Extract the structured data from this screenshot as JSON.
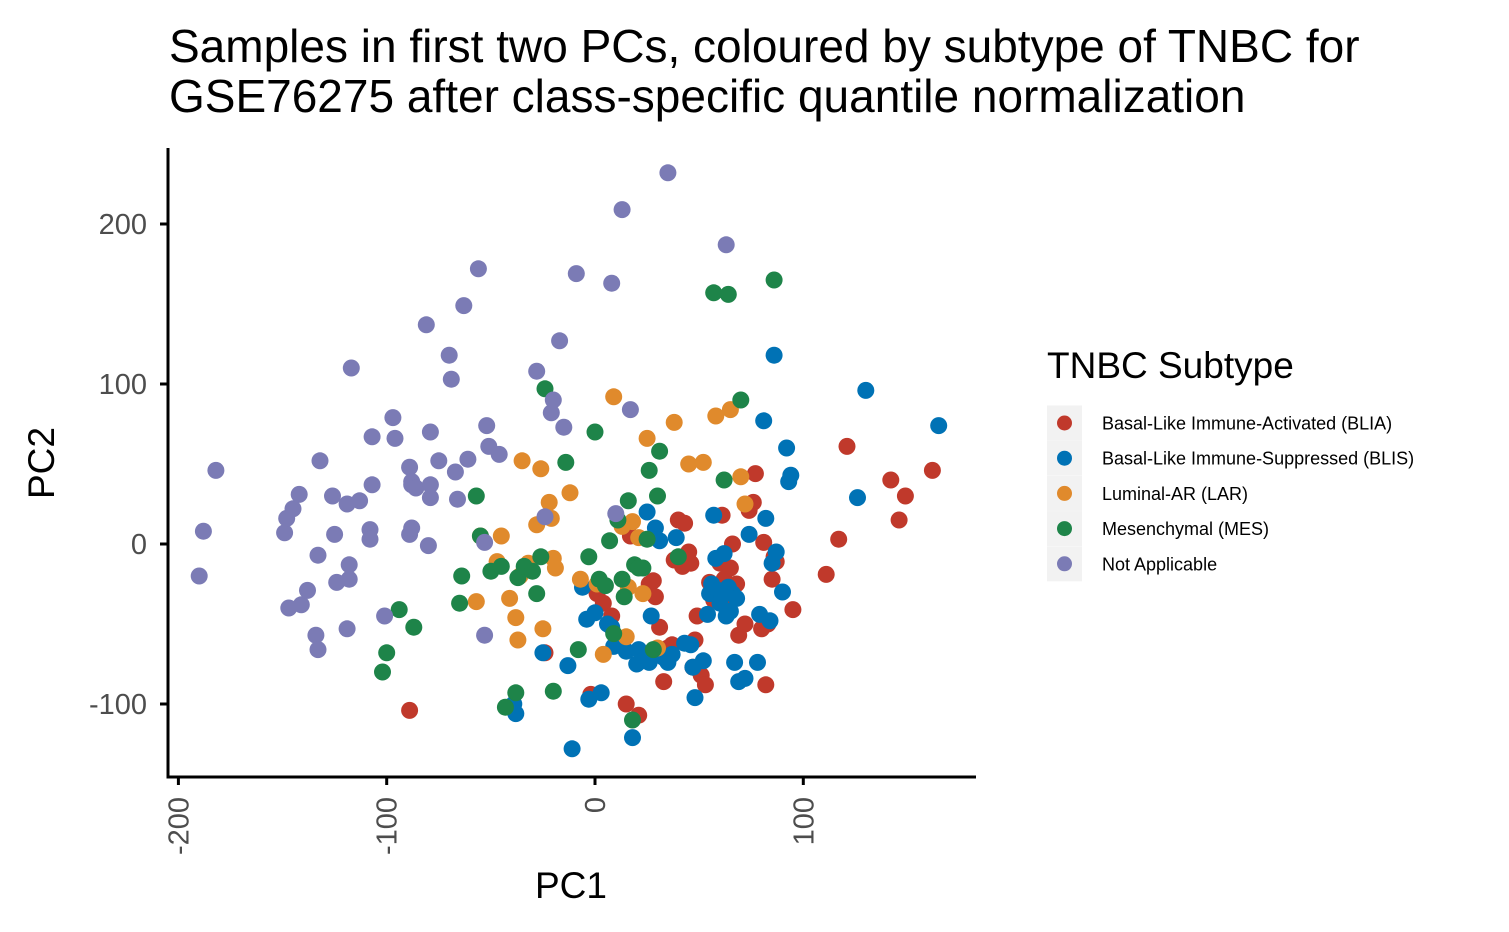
{
  "chart_data": {
    "type": "scatter",
    "title_lines": [
      "Samples in first two PCs, coloured by subtype of TNBC for",
      "GSE76275 after class-specific quantile normalization"
    ],
    "xlabel": "PC1",
    "ylabel": "PC2",
    "xlim": [
      -205,
      175
    ],
    "ylim": [
      -145,
      248
    ],
    "x_ticks": [
      -200,
      -100,
      0,
      100
    ],
    "x_tick_labels": [
      "-200",
      "-100",
      "0",
      "100"
    ],
    "y_ticks": [
      -100,
      0,
      100,
      200
    ],
    "y_tick_labels": [
      "-100",
      "0",
      "100",
      "200"
    ],
    "grid": false,
    "legend": {
      "title": "TNBC Subtype",
      "position": "right"
    },
    "series": [
      {
        "name": "Basal-Like Immune-Activated (BLIA)",
        "color": "#C0392B",
        "points": [
          [
            -89,
            -104
          ],
          [
            -24,
            -68
          ],
          [
            -2,
            -94
          ],
          [
            1,
            -31
          ],
          [
            4,
            -37
          ],
          [
            8,
            -45
          ],
          [
            15,
            -100
          ],
          [
            17,
            5
          ],
          [
            21,
            -107
          ],
          [
            26,
            -25
          ],
          [
            28,
            -23
          ],
          [
            29,
            -33
          ],
          [
            31,
            -52
          ],
          [
            33,
            -86
          ],
          [
            35,
            -65
          ],
          [
            37,
            -63
          ],
          [
            38,
            -10
          ],
          [
            40,
            15
          ],
          [
            42,
            -14
          ],
          [
            43,
            13
          ],
          [
            45,
            -5
          ],
          [
            46,
            -12
          ],
          [
            47,
            -77
          ],
          [
            48,
            -60
          ],
          [
            49,
            -45
          ],
          [
            51,
            -82
          ],
          [
            53,
            -88
          ],
          [
            55,
            -24
          ],
          [
            57,
            -35
          ],
          [
            60,
            -12
          ],
          [
            61,
            18
          ],
          [
            62,
            -22
          ],
          [
            63,
            -37
          ],
          [
            65,
            -15
          ],
          [
            66,
            0
          ],
          [
            68,
            -25
          ],
          [
            69,
            -57
          ],
          [
            72,
            -50
          ],
          [
            74,
            21
          ],
          [
            76,
            26
          ],
          [
            77,
            44
          ],
          [
            80,
            -53
          ],
          [
            81,
            1
          ],
          [
            82,
            -88
          ],
          [
            83,
            -50
          ],
          [
            85,
            -22
          ],
          [
            86,
            -8
          ],
          [
            87,
            -11
          ],
          [
            95,
            -41
          ],
          [
            111,
            -19
          ],
          [
            117,
            3
          ],
          [
            121,
            61
          ],
          [
            142,
            40
          ],
          [
            146,
            15
          ],
          [
            149,
            30
          ],
          [
            162,
            46
          ]
        ]
      },
      {
        "name": "Basal-Like Immune-Suppressed (BLIS)",
        "color": "#0072B5",
        "points": [
          [
            -39,
            -100
          ],
          [
            -38,
            -106
          ],
          [
            -25,
            -68
          ],
          [
            -13,
            -76
          ],
          [
            -11,
            -128
          ],
          [
            -6,
            -27
          ],
          [
            -4,
            -47
          ],
          [
            -3,
            -97
          ],
          [
            0,
            -43
          ],
          [
            3,
            -93
          ],
          [
            6,
            -50
          ],
          [
            8,
            -52
          ],
          [
            9,
            -64
          ],
          [
            13,
            -63
          ],
          [
            15,
            -67
          ],
          [
            18,
            -121
          ],
          [
            20,
            -75
          ],
          [
            21,
            -66
          ],
          [
            23,
            -73
          ],
          [
            25,
            20
          ],
          [
            26,
            -74
          ],
          [
            27,
            -45
          ],
          [
            29,
            10
          ],
          [
            31,
            2
          ],
          [
            33,
            -71
          ],
          [
            35,
            -74
          ],
          [
            37,
            -69
          ],
          [
            39,
            4
          ],
          [
            43,
            -62
          ],
          [
            46,
            -63
          ],
          [
            47,
            -77
          ],
          [
            48,
            -96
          ],
          [
            52,
            -73
          ],
          [
            54,
            -44
          ],
          [
            55,
            -31
          ],
          [
            56,
            -25
          ],
          [
            57,
            18
          ],
          [
            58,
            -9
          ],
          [
            59,
            -29
          ],
          [
            60,
            -37
          ],
          [
            61,
            -32
          ],
          [
            62,
            -6
          ],
          [
            63,
            -45
          ],
          [
            64,
            -27
          ],
          [
            65,
            -42
          ],
          [
            66,
            -31
          ],
          [
            67,
            -74
          ],
          [
            68,
            -34
          ],
          [
            69,
            -86
          ],
          [
            72,
            -84
          ],
          [
            74,
            6
          ],
          [
            78,
            -74
          ],
          [
            79,
            -44
          ],
          [
            81,
            77
          ],
          [
            82,
            16
          ],
          [
            84,
            -48
          ],
          [
            85,
            -12
          ],
          [
            86,
            118
          ],
          [
            87,
            -5
          ],
          [
            90,
            -30
          ],
          [
            92,
            60
          ],
          [
            93,
            39
          ],
          [
            94,
            43
          ],
          [
            126,
            29
          ],
          [
            130,
            96
          ],
          [
            165,
            74
          ]
        ]
      },
      {
        "name": "Luminal-AR (LAR)",
        "color": "#E08A2C",
        "points": [
          [
            -55,
            5
          ],
          [
            -57,
            -36
          ],
          [
            -47,
            -11
          ],
          [
            -45,
            5
          ],
          [
            -41,
            -34
          ],
          [
            -38,
            -46
          ],
          [
            -37,
            -60
          ],
          [
            -36,
            -20
          ],
          [
            -35,
            52
          ],
          [
            -32,
            -12
          ],
          [
            -28,
            12
          ],
          [
            -26,
            47
          ],
          [
            -25,
            -53
          ],
          [
            -22,
            26
          ],
          [
            -21,
            16
          ],
          [
            -20,
            -9
          ],
          [
            -19,
            -15
          ],
          [
            -12,
            32
          ],
          [
            -7,
            -22
          ],
          [
            1,
            -25
          ],
          [
            4,
            -69
          ],
          [
            9,
            92
          ],
          [
            13,
            11
          ],
          [
            15,
            -58
          ],
          [
            16,
            -27
          ],
          [
            18,
            14
          ],
          [
            21,
            4
          ],
          [
            23,
            -31
          ],
          [
            25,
            66
          ],
          [
            30,
            -65
          ],
          [
            38,
            76
          ],
          [
            45,
            50
          ],
          [
            52,
            51
          ],
          [
            58,
            80
          ],
          [
            65,
            84
          ],
          [
            70,
            42
          ],
          [
            72,
            25
          ]
        ]
      },
      {
        "name": "Mesenchymal (MES)",
        "color": "#1E8449",
        "points": [
          [
            -102,
            -80
          ],
          [
            -100,
            -68
          ],
          [
            -94,
            -41
          ],
          [
            -87,
            -52
          ],
          [
            -65,
            -37
          ],
          [
            -64,
            -20
          ],
          [
            -57,
            30
          ],
          [
            -55,
            5
          ],
          [
            -50,
            -17
          ],
          [
            -45,
            -14
          ],
          [
            -43,
            -102
          ],
          [
            -38,
            -93
          ],
          [
            -37,
            -21
          ],
          [
            -34,
            -14
          ],
          [
            -30,
            -17
          ],
          [
            -28,
            -31
          ],
          [
            -26,
            -8
          ],
          [
            -24,
            97
          ],
          [
            -20,
            -92
          ],
          [
            -14,
            51
          ],
          [
            -8,
            -66
          ],
          [
            -3,
            -8
          ],
          [
            0,
            70
          ],
          [
            2,
            -22
          ],
          [
            5,
            -26
          ],
          [
            7,
            2
          ],
          [
            9,
            -56
          ],
          [
            11,
            15
          ],
          [
            13,
            -22
          ],
          [
            14,
            -33
          ],
          [
            16,
            27
          ],
          [
            18,
            -110
          ],
          [
            19,
            -13
          ],
          [
            21,
            -15
          ],
          [
            23,
            -15
          ],
          [
            25,
            3
          ],
          [
            26,
            46
          ],
          [
            28,
            -66
          ],
          [
            30,
            30
          ],
          [
            31,
            58
          ],
          [
            40,
            -8
          ],
          [
            57,
            157
          ],
          [
            62,
            40
          ],
          [
            64,
            156
          ],
          [
            70,
            90
          ],
          [
            86,
            165
          ]
        ]
      },
      {
        "name": "Not Applicable",
        "color": "#7B7BB5",
        "points": [
          [
            -190,
            -20
          ],
          [
            -188,
            8
          ],
          [
            -182,
            46
          ],
          [
            -149,
            7
          ],
          [
            -148,
            16
          ],
          [
            -147,
            -40
          ],
          [
            -145,
            22
          ],
          [
            -142,
            31
          ],
          [
            -141,
            -38
          ],
          [
            -138,
            -29
          ],
          [
            -134,
            -57
          ],
          [
            -133,
            -66
          ],
          [
            -132,
            52
          ],
          [
            -133,
            -7
          ],
          [
            -126,
            30
          ],
          [
            -125,
            6
          ],
          [
            -124,
            -24
          ],
          [
            -119,
            -53
          ],
          [
            -118,
            -13
          ],
          [
            -118,
            -22
          ],
          [
            -117,
            110
          ],
          [
            -119,
            25
          ],
          [
            -113,
            27
          ],
          [
            -108,
            9
          ],
          [
            -108,
            3
          ],
          [
            -107,
            37
          ],
          [
            -107,
            67
          ],
          [
            -101,
            -45
          ],
          [
            -96,
            66
          ],
          [
            -97,
            79
          ],
          [
            -88,
            37
          ],
          [
            -89,
            6
          ],
          [
            -89,
            48
          ],
          [
            -88,
            10
          ],
          [
            -88,
            39
          ],
          [
            -86,
            35
          ],
          [
            -81,
            137
          ],
          [
            -80,
            -1
          ],
          [
            -79,
            70
          ],
          [
            -79,
            29
          ],
          [
            -79,
            37
          ],
          [
            -75,
            52
          ],
          [
            -67,
            45
          ],
          [
            -69,
            103
          ],
          [
            -70,
            118
          ],
          [
            -66,
            28
          ],
          [
            -63,
            149
          ],
          [
            -61,
            53
          ],
          [
            -56,
            172
          ],
          [
            -53,
            -57
          ],
          [
            -52,
            74
          ],
          [
            -53,
            1
          ],
          [
            -51,
            61
          ],
          [
            -46,
            56
          ],
          [
            -28,
            108
          ],
          [
            -24,
            17
          ],
          [
            -21,
            82
          ],
          [
            -20,
            90
          ],
          [
            -17,
            127
          ],
          [
            -15,
            73
          ],
          [
            -9,
            169
          ],
          [
            10,
            19
          ],
          [
            8,
            163
          ],
          [
            13,
            209
          ],
          [
            17,
            84
          ],
          [
            35,
            232
          ],
          [
            63,
            187
          ]
        ]
      }
    ]
  }
}
